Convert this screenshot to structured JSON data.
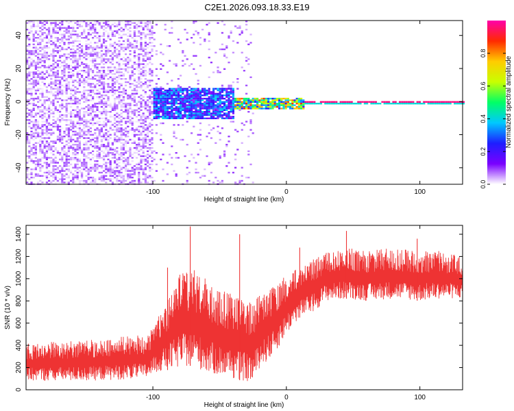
{
  "title": "C2E1.2026.093.18.33.E19",
  "chart_data": [
    {
      "type": "heatmap",
      "xlabel": "Height of straight line (km)",
      "ylabel": "Frequency (Hz)",
      "xlim": [
        -195,
        132
      ],
      "ylim": [
        -50,
        49
      ],
      "xticks": [
        -100,
        0,
        100
      ],
      "xtick_labels": [
        "-100",
        "0",
        "100"
      ],
      "yticks": [
        -40,
        -20,
        0,
        20,
        40
      ],
      "ytick_labels": [
        "-40",
        "-20",
        "0",
        "20",
        "40"
      ],
      "colorbar": {
        "label": "Normalized spectral amplitude",
        "range": [
          0.0,
          1.0
        ],
        "ticks": [
          0.0,
          0.2,
          0.4,
          0.6,
          0.8
        ],
        "tick_labels": [
          "0.0",
          "0.2",
          "0.4",
          "0.6",
          "0.8"
        ],
        "colormap": [
          "#ffffff",
          "#7a00ff",
          "#1e1eff",
          "#00c8ff",
          "#00ff66",
          "#c8ff00",
          "#ffcc00",
          "#ff2a00",
          "#ff00aa"
        ]
      },
      "regions": [
        {
          "x_range": [
            -195,
            -100
          ],
          "description_values": {
            "freq_spread": [
              -50,
              49
            ],
            "amplitude": [
              0.0,
              0.1
            ]
          }
        },
        {
          "x_range": [
            -100,
            -40
          ],
          "description_values": {
            "freq_spread": [
              -10,
              9
            ],
            "amplitude": [
              0.1,
              0.4
            ]
          }
        },
        {
          "x_range": [
            -40,
            12
          ],
          "description_values": {
            "freq_spread": [
              -4,
              3
            ],
            "amplitude": [
              0.2,
              0.9
            ]
          }
        },
        {
          "x_range": [
            12,
            132
          ],
          "description_values": {
            "freq_spread": [
              -1,
              1
            ],
            "amplitude": [
              0.9,
              1.0
            ]
          }
        }
      ]
    },
    {
      "type": "line",
      "xlabel": "Height of straight line (km)",
      "ylabel": "SNR (10 * v/v)",
      "xlim": [
        -195,
        132
      ],
      "ylim": [
        0,
        1480
      ],
      "xticks": [
        -100,
        0,
        100
      ],
      "xtick_labels": [
        "-100",
        "0",
        "100"
      ],
      "yticks": [
        0,
        200,
        400,
        600,
        800,
        1000,
        1200,
        1400
      ],
      "ytick_labels": [
        "0",
        "200",
        "400",
        "600",
        "800",
        "1000",
        "1200",
        "1400"
      ],
      "color": "#ee3333",
      "x": [
        -195,
        -150,
        -105,
        -100,
        -80,
        -70,
        -60,
        -40,
        -25,
        -20,
        -10,
        0,
        10,
        20,
        30,
        45,
        60,
        80,
        100,
        115,
        132
      ],
      "y_low": [
        80,
        80,
        100,
        150,
        200,
        220,
        150,
        100,
        60,
        200,
        300,
        500,
        650,
        700,
        800,
        820,
        800,
        820,
        800,
        820,
        820
      ],
      "y_high": [
        420,
        450,
        500,
        550,
        1050,
        1100,
        1000,
        850,
        800,
        850,
        950,
        1050,
        1100,
        1180,
        1250,
        1280,
        1250,
        1280,
        1250,
        1250,
        1200
      ],
      "peaks": [
        {
          "x": -72,
          "y": 1470
        },
        {
          "x": -89,
          "y": 1100
        },
        {
          "x": -35,
          "y": 1400
        },
        {
          "x": 45,
          "y": 1430
        },
        {
          "x": 10,
          "y": 1280
        },
        {
          "x": 98,
          "y": 1360
        }
      ]
    }
  ]
}
